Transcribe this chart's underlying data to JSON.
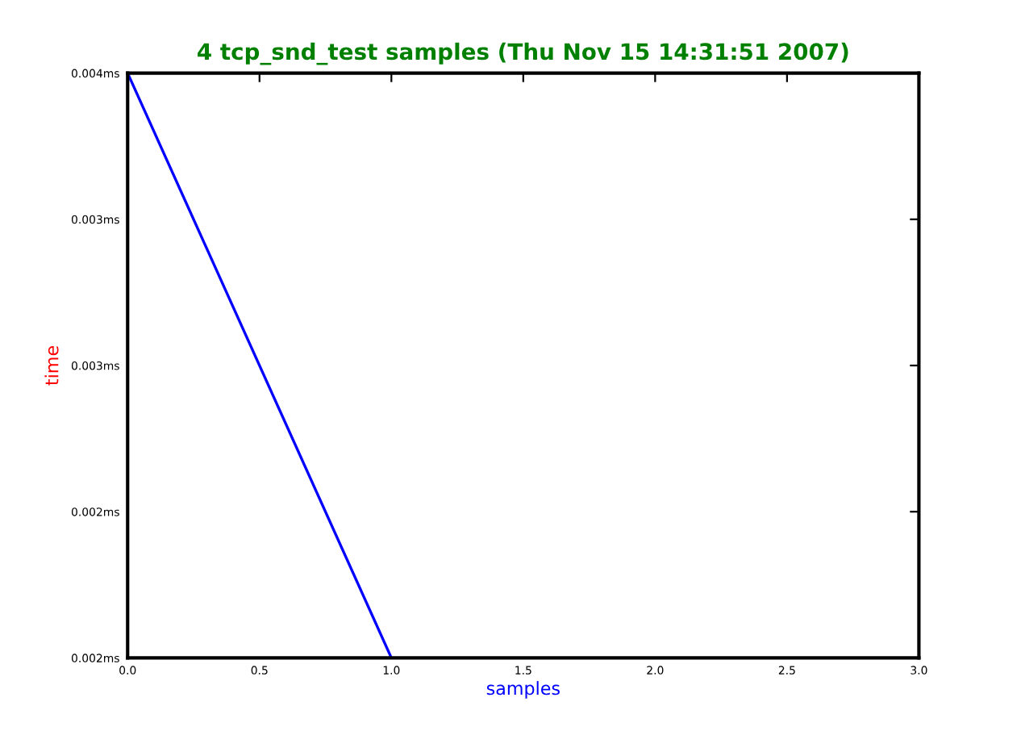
{
  "chart_data": {
    "type": "line",
    "title": "4 tcp_snd_test samples (Thu Nov 15 14:31:51 2007)",
    "xlabel": "samples",
    "ylabel": "time",
    "series": [
      {
        "color": "#0000ff",
        "x": [
          0,
          1
        ],
        "values": [
          0.004,
          0.002
        ]
      }
    ],
    "xlim": [
      0,
      3
    ],
    "xticks": [
      {
        "value": 0,
        "label": "0.0"
      },
      {
        "value": 0.5,
        "label": "0.5"
      },
      {
        "value": 1,
        "label": "1.0"
      },
      {
        "value": 1.5,
        "label": "1.5"
      },
      {
        "value": 2,
        "label": "2.0"
      },
      {
        "value": 2.5,
        "label": "2.5"
      },
      {
        "value": 3,
        "label": "3.0"
      }
    ],
    "ylim": [
      0.002,
      0.004
    ],
    "yticks": [
      {
        "value": 0.002,
        "label": "0.002ms"
      },
      {
        "value": 0.0025,
        "label": "0.002ms"
      },
      {
        "value": 0.003,
        "label": "0.003ms"
      },
      {
        "value": 0.0035,
        "label": "0.003ms"
      },
      {
        "value": 0.004,
        "label": "0.004ms"
      }
    ],
    "grid": false,
    "legend": false
  }
}
